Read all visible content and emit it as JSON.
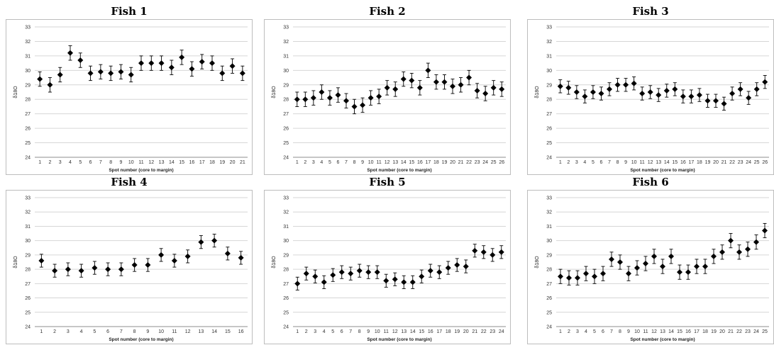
{
  "chart_data": [
    {
      "type": "scatter",
      "title": "Fish 1",
      "xlabel": "Spot number (core to margin)",
      "ylabel": "δ18O",
      "ylim": [
        24,
        33
      ],
      "yticks": [
        24,
        25,
        26,
        27,
        28,
        29,
        30,
        31,
        32,
        33
      ],
      "x": [
        1,
        2,
        3,
        4,
        5,
        6,
        7,
        8,
        9,
        10,
        11,
        12,
        13,
        14,
        15,
        16,
        17,
        18,
        19,
        20,
        21
      ],
      "values": [
        29.4,
        29.0,
        29.7,
        31.2,
        30.7,
        29.8,
        29.9,
        29.8,
        29.9,
        29.7,
        30.5,
        30.5,
        30.5,
        30.2,
        30.9,
        30.1,
        30.6,
        30.5,
        29.8,
        30.3,
        29.8
      ],
      "error": 0.5
    },
    {
      "type": "scatter",
      "title": "Fish 2",
      "xlabel": "Spot number (core to margin)",
      "ylabel": "δ18O",
      "ylim": [
        24,
        33
      ],
      "yticks": [
        24,
        25,
        26,
        27,
        28,
        29,
        30,
        31,
        32,
        33
      ],
      "x": [
        1,
        2,
        3,
        4,
        5,
        6,
        7,
        8,
        9,
        10,
        11,
        12,
        13,
        14,
        15,
        16,
        17,
        18,
        19,
        20,
        21,
        22,
        23,
        24,
        25,
        26
      ],
      "values": [
        28.0,
        28.0,
        28.1,
        28.5,
        28.1,
        28.3,
        27.9,
        27.5,
        27.6,
        28.1,
        28.2,
        28.8,
        28.7,
        29.4,
        29.3,
        28.8,
        30.0,
        29.2,
        29.2,
        28.9,
        29.0,
        29.5,
        28.6,
        28.4,
        28.8,
        28.7
      ],
      "error": 0.5
    },
    {
      "type": "scatter",
      "title": "Fish 3",
      "xlabel": "Spot number (core to margin)",
      "ylabel": "δ18O",
      "ylim": [
        24,
        33
      ],
      "yticks": [
        24,
        25,
        26,
        27,
        28,
        29,
        30,
        31,
        32,
        33
      ],
      "x": [
        1,
        2,
        3,
        4,
        5,
        6,
        7,
        8,
        9,
        10,
        11,
        12,
        13,
        14,
        15,
        16,
        17,
        18,
        19,
        20,
        21,
        22,
        23,
        24,
        25,
        26
      ],
      "values": [
        28.9,
        28.8,
        28.5,
        28.2,
        28.5,
        28.4,
        28.7,
        29.0,
        29.0,
        29.1,
        28.4,
        28.5,
        28.3,
        28.6,
        28.7,
        28.2,
        28.2,
        28.3,
        27.9,
        27.9,
        27.7,
        28.4,
        28.7,
        28.1,
        28.7,
        29.2
      ],
      "error": 0.45
    },
    {
      "type": "scatter",
      "title": "Fish 4",
      "xlabel": "Spot number (core to margin)",
      "ylabel": "δ18O",
      "ylim": [
        24,
        33
      ],
      "yticks": [
        24,
        25,
        26,
        27,
        28,
        29,
        30,
        31,
        32,
        33
      ],
      "x": [
        1,
        2,
        3,
        4,
        5,
        6,
        7,
        8,
        9,
        10,
        11,
        12,
        13,
        14,
        15,
        16
      ],
      "values": [
        28.6,
        27.9,
        28.0,
        27.9,
        28.1,
        28.0,
        28.0,
        28.3,
        28.3,
        29.0,
        28.6,
        28.9,
        29.9,
        30.0,
        29.1,
        28.8
      ],
      "error": 0.45
    },
    {
      "type": "scatter",
      "title": "Fish 5",
      "xlabel": "Spot number (core to margin)",
      "ylabel": "δ18O",
      "ylim": [
        24,
        33
      ],
      "yticks": [
        24,
        25,
        26,
        27,
        28,
        29,
        30,
        31,
        32,
        33
      ],
      "x": [
        1,
        2,
        3,
        4,
        5,
        6,
        7,
        8,
        9,
        10,
        11,
        12,
        13,
        14,
        15,
        16,
        17,
        18,
        19,
        20,
        21,
        22,
        23,
        24
      ],
      "values": [
        27.0,
        27.7,
        27.5,
        27.1,
        27.6,
        27.8,
        27.7,
        27.9,
        27.8,
        27.8,
        27.2,
        27.3,
        27.1,
        27.1,
        27.5,
        27.9,
        27.8,
        28.1,
        28.3,
        28.2,
        29.3,
        29.2,
        29.0,
        29.2
      ],
      "error": 0.45
    },
    {
      "type": "scatter",
      "title": "Fish 6",
      "xlabel": "Spot number (core to margin)",
      "ylabel": "δ18O",
      "ylim": [
        24,
        33
      ],
      "yticks": [
        24,
        25,
        26,
        27,
        28,
        29,
        30,
        31,
        32,
        33
      ],
      "x": [
        1,
        2,
        3,
        4,
        5,
        6,
        7,
        8,
        9,
        10,
        11,
        12,
        13,
        14,
        15,
        16,
        17,
        18,
        19,
        20,
        21,
        22,
        23,
        24,
        25
      ],
      "values": [
        27.5,
        27.4,
        27.4,
        27.7,
        27.5,
        27.7,
        28.7,
        28.5,
        27.7,
        28.1,
        28.4,
        28.9,
        28.2,
        28.9,
        27.8,
        27.8,
        28.2,
        28.2,
        28.9,
        29.2,
        30.0,
        29.2,
        29.4,
        29.9,
        30.7
      ],
      "error": 0.5
    }
  ]
}
